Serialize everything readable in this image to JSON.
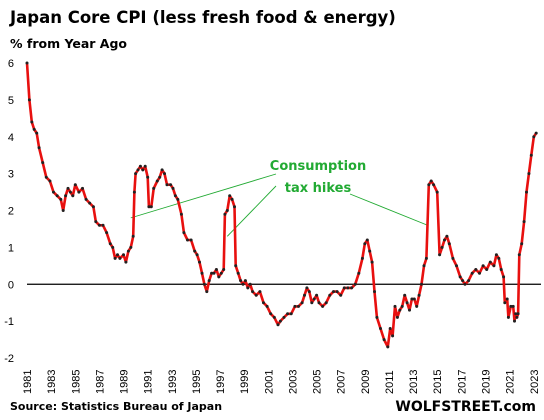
{
  "chart_data": {
    "type": "line",
    "title": "Japan Core CPI (less fresh food & energy)",
    "subtitle": "% from Year Ago",
    "xlim": [
      1981,
      2023.6
    ],
    "ylim": [
      -2,
      6
    ],
    "y_ticks": [
      6,
      5,
      4,
      3,
      2,
      1,
      0,
      -1,
      -2
    ],
    "x_ticks": [
      "1981",
      "1983",
      "1985",
      "1987",
      "1989",
      "1991",
      "1993",
      "1995",
      "1997",
      "1999",
      "2001",
      "2003",
      "2005",
      "2007",
      "2009",
      "2011",
      "2013",
      "2015",
      "2017",
      "2019",
      "2021",
      "2023"
    ],
    "grid": false,
    "zero_line": true,
    "series": [
      {
        "color": "#e8100f",
        "marker_color": "#222222",
        "points": [
          [
            1981.0,
            6.0
          ],
          [
            1981.2,
            5.0
          ],
          [
            1981.4,
            4.4
          ],
          [
            1981.6,
            4.2
          ],
          [
            1981.8,
            4.1
          ],
          [
            1982.0,
            3.7
          ],
          [
            1982.3,
            3.3
          ],
          [
            1982.6,
            2.9
          ],
          [
            1982.9,
            2.8
          ],
          [
            1983.2,
            2.5
          ],
          [
            1983.5,
            2.4
          ],
          [
            1983.8,
            2.3
          ],
          [
            1984.0,
            2.0
          ],
          [
            1984.2,
            2.4
          ],
          [
            1984.4,
            2.6
          ],
          [
            1984.6,
            2.5
          ],
          [
            1984.8,
            2.4
          ],
          [
            1985.0,
            2.7
          ],
          [
            1985.3,
            2.5
          ],
          [
            1985.6,
            2.6
          ],
          [
            1985.9,
            2.3
          ],
          [
            1986.2,
            2.2
          ],
          [
            1986.5,
            2.1
          ],
          [
            1986.7,
            1.7
          ],
          [
            1987.0,
            1.6
          ],
          [
            1987.3,
            1.6
          ],
          [
            1987.6,
            1.4
          ],
          [
            1987.9,
            1.1
          ],
          [
            1988.1,
            1.0
          ],
          [
            1988.3,
            0.7
          ],
          [
            1988.5,
            0.8
          ],
          [
            1988.7,
            0.7
          ],
          [
            1989.0,
            0.8
          ],
          [
            1989.2,
            0.6
          ],
          [
            1989.4,
            0.9
          ],
          [
            1989.6,
            1.0
          ],
          [
            1989.8,
            1.3
          ],
          [
            1989.9,
            2.5
          ],
          [
            1990.0,
            3.0
          ],
          [
            1990.2,
            3.1
          ],
          [
            1990.4,
            3.2
          ],
          [
            1990.6,
            3.1
          ],
          [
            1990.8,
            3.2
          ],
          [
            1991.0,
            2.9
          ],
          [
            1991.1,
            2.1
          ],
          [
            1991.3,
            2.1
          ],
          [
            1991.5,
            2.6
          ],
          [
            1991.8,
            2.8
          ],
          [
            1992.0,
            2.9
          ],
          [
            1992.2,
            3.1
          ],
          [
            1992.4,
            3.0
          ],
          [
            1992.6,
            2.7
          ],
          [
            1992.9,
            2.7
          ],
          [
            1993.1,
            2.6
          ],
          [
            1993.3,
            2.4
          ],
          [
            1993.5,
            2.3
          ],
          [
            1993.8,
            1.9
          ],
          [
            1994.0,
            1.4
          ],
          [
            1994.3,
            1.2
          ],
          [
            1994.6,
            1.2
          ],
          [
            1994.9,
            0.9
          ],
          [
            1995.1,
            0.8
          ],
          [
            1995.3,
            0.6
          ],
          [
            1995.5,
            0.3
          ],
          [
            1995.7,
            0.0
          ],
          [
            1995.9,
            -0.2
          ],
          [
            1996.1,
            0.1
          ],
          [
            1996.3,
            0.3
          ],
          [
            1996.5,
            0.3
          ],
          [
            1996.7,
            0.4
          ],
          [
            1996.9,
            0.2
          ],
          [
            1997.1,
            0.3
          ],
          [
            1997.3,
            0.4
          ],
          [
            1997.4,
            1.9
          ],
          [
            1997.6,
            2.0
          ],
          [
            1997.8,
            2.4
          ],
          [
            1998.0,
            2.3
          ],
          [
            1998.2,
            2.1
          ],
          [
            1998.3,
            0.5
          ],
          [
            1998.5,
            0.3
          ],
          [
            1998.7,
            0.1
          ],
          [
            1998.9,
            0.0
          ],
          [
            1999.1,
            0.1
          ],
          [
            1999.3,
            -0.1
          ],
          [
            1999.5,
            0.0
          ],
          [
            1999.7,
            -0.2
          ],
          [
            2000.0,
            -0.3
          ],
          [
            2000.3,
            -0.2
          ],
          [
            2000.6,
            -0.5
          ],
          [
            2000.9,
            -0.6
          ],
          [
            2001.2,
            -0.8
          ],
          [
            2001.5,
            -0.9
          ],
          [
            2001.8,
            -1.1
          ],
          [
            2002.0,
            -1.0
          ],
          [
            2002.3,
            -0.9
          ],
          [
            2002.6,
            -0.8
          ],
          [
            2002.9,
            -0.8
          ],
          [
            2003.2,
            -0.6
          ],
          [
            2003.5,
            -0.6
          ],
          [
            2003.8,
            -0.5
          ],
          [
            2004.0,
            -0.3
          ],
          [
            2004.2,
            -0.1
          ],
          [
            2004.4,
            -0.2
          ],
          [
            2004.6,
            -0.5
          ],
          [
            2004.8,
            -0.4
          ],
          [
            2005.0,
            -0.3
          ],
          [
            2005.2,
            -0.5
          ],
          [
            2005.5,
            -0.6
          ],
          [
            2005.8,
            -0.5
          ],
          [
            2006.1,
            -0.3
          ],
          [
            2006.4,
            -0.2
          ],
          [
            2006.7,
            -0.2
          ],
          [
            2007.0,
            -0.3
          ],
          [
            2007.3,
            -0.1
          ],
          [
            2007.6,
            -0.1
          ],
          [
            2007.9,
            -0.1
          ],
          [
            2008.2,
            0.0
          ],
          [
            2008.5,
            0.3
          ],
          [
            2008.8,
            0.7
          ],
          [
            2009.0,
            1.1
          ],
          [
            2009.2,
            1.2
          ],
          [
            2009.4,
            0.9
          ],
          [
            2009.6,
            0.6
          ],
          [
            2009.8,
            -0.2
          ],
          [
            2010.0,
            -0.9
          ],
          [
            2010.3,
            -1.2
          ],
          [
            2010.6,
            -1.5
          ],
          [
            2010.9,
            -1.7
          ],
          [
            2011.1,
            -1.2
          ],
          [
            2011.3,
            -1.4
          ],
          [
            2011.5,
            -0.6
          ],
          [
            2011.7,
            -0.9
          ],
          [
            2011.9,
            -0.7
          ],
          [
            2012.1,
            -0.6
          ],
          [
            2012.3,
            -0.3
          ],
          [
            2012.5,
            -0.5
          ],
          [
            2012.7,
            -0.7
          ],
          [
            2012.9,
            -0.4
          ],
          [
            2013.1,
            -0.4
          ],
          [
            2013.3,
            -0.6
          ],
          [
            2013.5,
            -0.3
          ],
          [
            2013.7,
            0.0
          ],
          [
            2013.9,
            0.5
          ],
          [
            2014.1,
            0.7
          ],
          [
            2014.3,
            2.7
          ],
          [
            2014.5,
            2.8
          ],
          [
            2014.7,
            2.7
          ],
          [
            2015.0,
            2.5
          ],
          [
            2015.2,
            0.8
          ],
          [
            2015.4,
            1.0
          ],
          [
            2015.6,
            1.2
          ],
          [
            2015.8,
            1.3
          ],
          [
            2016.0,
            1.1
          ],
          [
            2016.3,
            0.7
          ],
          [
            2016.6,
            0.5
          ],
          [
            2016.9,
            0.2
          ],
          [
            2017.1,
            0.1
          ],
          [
            2017.3,
            0.0
          ],
          [
            2017.6,
            0.1
          ],
          [
            2017.9,
            0.3
          ],
          [
            2018.2,
            0.4
          ],
          [
            2018.5,
            0.3
          ],
          [
            2018.8,
            0.5
          ],
          [
            2019.1,
            0.4
          ],
          [
            2019.4,
            0.6
          ],
          [
            2019.7,
            0.5
          ],
          [
            2019.9,
            0.8
          ],
          [
            2020.1,
            0.7
          ],
          [
            2020.3,
            0.4
          ],
          [
            2020.5,
            0.2
          ],
          [
            2020.6,
            -0.5
          ],
          [
            2020.8,
            -0.4
          ],
          [
            2020.9,
            -0.9
          ],
          [
            2021.1,
            -0.6
          ],
          [
            2021.3,
            -0.6
          ],
          [
            2021.4,
            -1.0
          ],
          [
            2021.5,
            -0.8
          ],
          [
            2021.6,
            -0.9
          ],
          [
            2021.7,
            -0.8
          ],
          [
            2021.8,
            0.8
          ],
          [
            2022.0,
            1.1
          ],
          [
            2022.2,
            1.7
          ],
          [
            2022.4,
            2.5
          ],
          [
            2022.6,
            3.0
          ],
          [
            2022.8,
            3.5
          ],
          [
            2023.0,
            4.0
          ],
          [
            2023.2,
            4.1
          ]
        ]
      }
    ],
    "annotation": {
      "text_line1": "Consumption",
      "text_line2": "tax hikes",
      "color": "#22aa33",
      "pointer_targets": [
        [
          1989.6,
          1.8
        ],
        [
          1997.6,
          1.3
        ],
        [
          2014.2,
          1.6
        ]
      ]
    },
    "source": "Source: Statistics Bureau of Japan",
    "brand": "WOLFSTREET.com"
  }
}
